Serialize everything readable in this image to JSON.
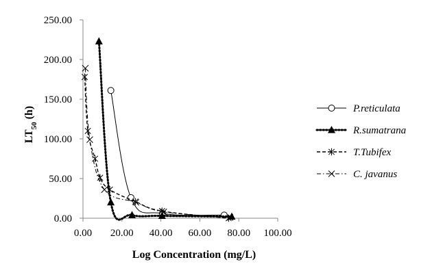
{
  "chart_data": {
    "type": "scatter",
    "title": "",
    "xlabel": "Log Concentration (mg/L)",
    "ylabel": "LT",
    "ylabel_subscript": "50",
    "ylabel_suffix": " (h)",
    "xlim": [
      0,
      100
    ],
    "ylim": [
      0,
      250
    ],
    "x_ticks": [
      0,
      20,
      40,
      60,
      80,
      100
    ],
    "y_ticks": [
      0,
      50,
      100,
      150,
      200,
      250
    ],
    "x_tick_labels": [
      "0.00",
      "20.00",
      "40.00",
      "60.00",
      "80.00",
      "100.00"
    ],
    "y_tick_labels": [
      "0.00",
      "50.00",
      "100.00",
      "150.00",
      "200.00",
      "250.00"
    ],
    "grid": false,
    "legend_position": "right",
    "series": [
      {
        "name": "P.reticulata",
        "line": "solid",
        "marker": "open-circle",
        "points": [
          [
            14.3,
            161
          ],
          [
            24.6,
            26
          ],
          [
            40.8,
            6
          ],
          [
            72.5,
            4
          ]
        ]
      },
      {
        "name": "R.sumatrana",
        "line": "dotted",
        "marker": "filled-triangle",
        "points": [
          [
            8.2,
            223
          ],
          [
            14.3,
            20
          ],
          [
            25.2,
            4
          ],
          [
            40.6,
            3
          ],
          [
            76.4,
            2
          ]
        ]
      },
      {
        "name": "T.Tubifex",
        "line": "dashed",
        "marker": "star",
        "points": [
          [
            0.9,
            178
          ],
          [
            2.5,
            110
          ],
          [
            6.2,
            75
          ],
          [
            8.8,
            51
          ],
          [
            13.8,
            36
          ],
          [
            26.9,
            21
          ],
          [
            40.6,
            9
          ],
          [
            74.8,
            0
          ]
        ]
      },
      {
        "name": "C. javanus",
        "line": "dash-dot",
        "marker": "x",
        "points": [
          [
            1.2,
            189
          ],
          [
            3.5,
            99
          ],
          [
            11.0,
            36
          ],
          [
            27.2,
            20
          ],
          [
            41.5,
            8
          ],
          [
            75.5,
            1
          ]
        ]
      }
    ]
  }
}
